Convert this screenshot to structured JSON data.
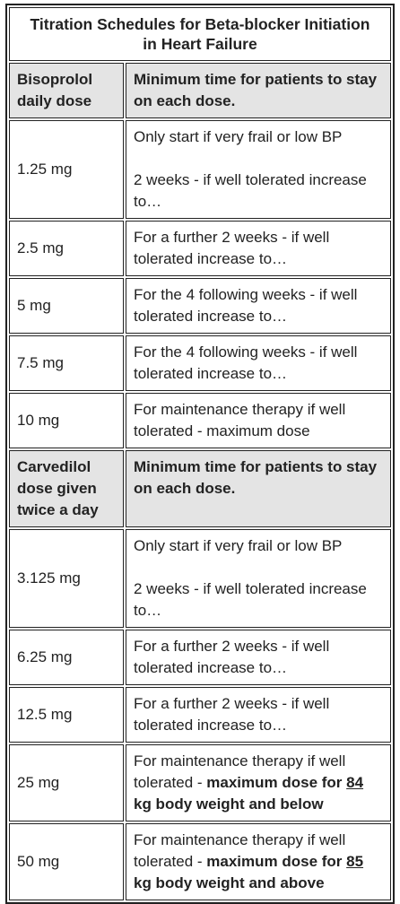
{
  "title": "Titration Schedules for Beta-blocker Initiation in Heart Failure",
  "sections": [
    {
      "header": [
        "Bisoprolol daily dose",
        "Minimum time for patients to stay on each dose."
      ],
      "rows": [
        {
          "dose": "1.25 mg",
          "time": [
            [
              {
                "text": "Only start if very frail or low BP"
              }
            ],
            [
              {
                "text": "2 weeks - if well tolerated increase to…"
              }
            ]
          ]
        },
        {
          "dose": "2.5 mg",
          "time": [
            [
              {
                "text": "For a further 2 weeks - if well tolerated increase to…"
              }
            ]
          ]
        },
        {
          "dose": "5 mg",
          "time": [
            [
              {
                "text": "For the 4 following weeks - if well tolerated increase to…"
              }
            ]
          ]
        },
        {
          "dose": "7.5 mg",
          "time": [
            [
              {
                "text": "For the 4 following weeks - if well tolerated increase to…"
              }
            ]
          ]
        },
        {
          "dose": "10 mg",
          "time": [
            [
              {
                "text": "For maintenance therapy if well tolerated - maximum dose"
              }
            ]
          ]
        }
      ]
    },
    {
      "header": [
        "Carvedilol dose given twice a day",
        "Minimum time for patients to stay on each dose."
      ],
      "rows": [
        {
          "dose": "3.125 mg",
          "time": [
            [
              {
                "text": "Only start if very frail or low BP"
              }
            ],
            [
              {
                "text": "2 weeks - if well tolerated increase to…"
              }
            ]
          ]
        },
        {
          "dose": "6.25 mg",
          "time": [
            [
              {
                "text": "For a further 2 weeks - if well tolerated increase to…"
              }
            ]
          ]
        },
        {
          "dose": "12.5 mg",
          "time": [
            [
              {
                "text": "For a further 2 weeks - if well tolerated increase to…"
              }
            ]
          ]
        },
        {
          "dose": "25 mg",
          "time": [
            [
              {
                "text": "For maintenance therapy if well tolerated - "
              },
              {
                "text": "maximum dose for ",
                "bold": true
              },
              {
                "text": "84",
                "bold": true,
                "underline": true
              },
              {
                "text": " kg body weight and below",
                "bold": true
              }
            ]
          ]
        },
        {
          "dose": "50 mg",
          "time": [
            [
              {
                "text": "For maintenance therapy if well tolerated - "
              },
              {
                "text": "maximum dose for ",
                "bold": true
              },
              {
                "text": "85",
                "bold": true,
                "underline": true
              },
              {
                "text": " kg body weight and above",
                "bold": true
              }
            ]
          ]
        }
      ]
    }
  ]
}
